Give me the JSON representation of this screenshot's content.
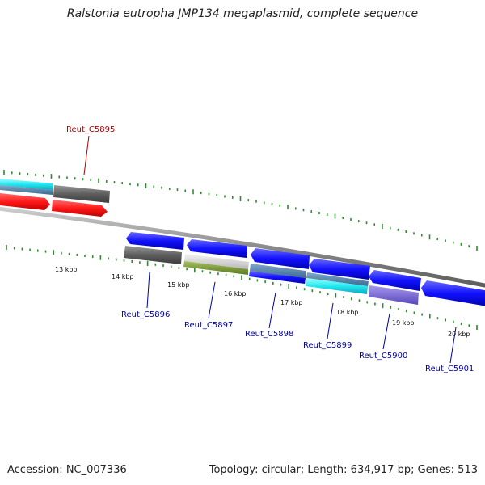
{
  "title": "Ralstonia eutropha JMP134 megaplasmid, complete sequence",
  "footer": {
    "accession": "Accession: NC_007336",
    "topology": "Topology: circular; Length: 634,917 bp; Genes: 513"
  },
  "colors": {
    "backbone": "#8a8a8a",
    "tick": "#2e8b2e",
    "label_upper": "#aa0000",
    "label_lower": "#0000aa"
  },
  "ticks": [
    {
      "kbp": 13,
      "label": "13 kbp"
    },
    {
      "kbp": 14,
      "label": "14 kbp"
    },
    {
      "kbp": 15,
      "label": "15 kbp"
    },
    {
      "kbp": 16,
      "label": "16 kbp"
    },
    {
      "kbp": 17,
      "label": "17 kbp"
    },
    {
      "kbp": 18,
      "label": "18 kbp"
    },
    {
      "kbp": 19,
      "label": "19 kbp"
    },
    {
      "kbp": 20,
      "label": "20 kbp"
    }
  ],
  "genes": [
    {
      "name": "Reut_C5895",
      "labeled": true,
      "strand": "forward"
    },
    {
      "name": "Reut_C5896",
      "labeled": true,
      "strand": "reverse"
    },
    {
      "name": "Reut_C5897",
      "labeled": true,
      "strand": "reverse"
    },
    {
      "name": "Reut_C5898",
      "labeled": true,
      "strand": "reverse"
    },
    {
      "name": "Reut_C5899",
      "labeled": true,
      "strand": "reverse"
    },
    {
      "name": "Reut_C5900",
      "labeled": true,
      "strand": "reverse"
    },
    {
      "name": "Reut_C5901",
      "labeled": true,
      "strand": "reverse"
    }
  ]
}
